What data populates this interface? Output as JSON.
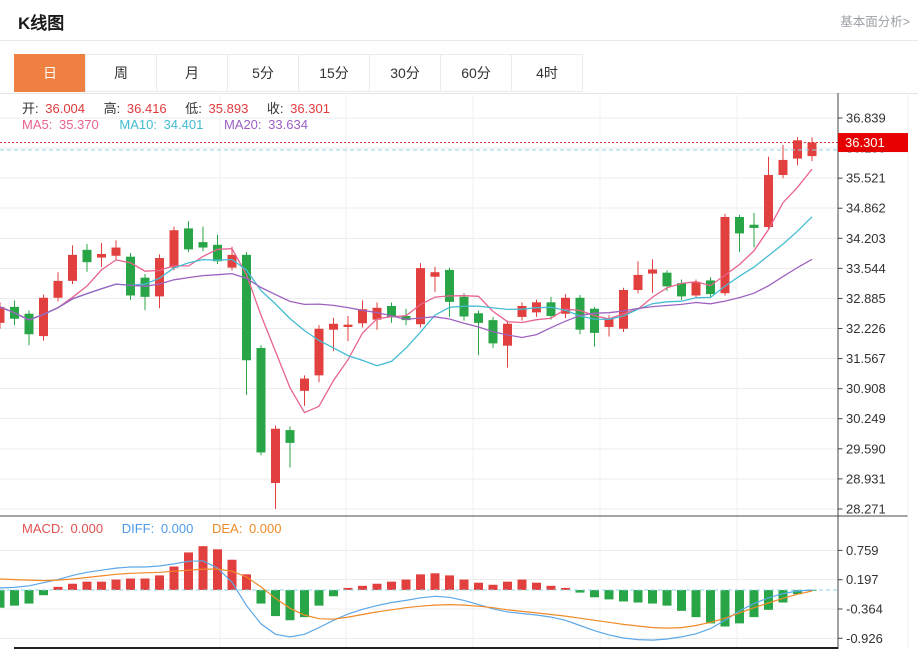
{
  "header": {
    "title": "K线图",
    "link": "基本面分析>"
  },
  "tabs": {
    "items": [
      "日",
      "周",
      "月",
      "5分",
      "15分",
      "30分",
      "60分",
      "4时"
    ],
    "active_index": 0
  },
  "readout": {
    "open_label": "开:",
    "open": "36.004",
    "high_label": "高:",
    "high": "36.416",
    "low_label": "低:",
    "low": "35.893",
    "close_label": "收:",
    "close": "36.301",
    "ma5_label": "MA5:",
    "ma5": "35.370",
    "ma10_label": "MA10:",
    "ma10": "34.401",
    "ma20_label": "MA20:",
    "ma20": "33.634"
  },
  "macd_readout": {
    "macd_label": "MACD:",
    "macd": "0.000",
    "diff_label": "DIFF:",
    "diff": "0.000",
    "dea_label": "DEA:",
    "dea": "0.000"
  },
  "badge": {
    "label": "36.301"
  },
  "colors": {
    "up": "#e2403e",
    "down": "#28a546",
    "ma5": "#e8638f",
    "ma10": "#45bcd2",
    "ma20": "#9e63c0",
    "diff": "#5ca8e8",
    "dea": "#f08a28",
    "badge": "#e60000",
    "current_dashed": "#e03030",
    "reference_dashed": "#8fd4e6",
    "tab_active": "#ee8041",
    "grid": "#ececec",
    "axis": "#444",
    "axis_text": "#333"
  },
  "chart_data": [
    {
      "type": "candlestick",
      "title": "K线图 (daily)",
      "ylim": [
        28.271,
        36.839
      ],
      "y_axis_labels": [
        36.839,
        36.18,
        35.521,
        34.862,
        34.203,
        33.544,
        32.885,
        32.226,
        31.567,
        30.908,
        30.249,
        29.59,
        28.931,
        28.271
      ],
      "current_price": 36.301,
      "reference_price": 36.138,
      "ma_periods": [
        5,
        10,
        20
      ],
      "legend": [
        "MA5",
        "MA10",
        "MA20"
      ],
      "grid": true,
      "ohlc_note": "open, high, low, close per candle; values estimated from pixels except last candle (from readout)",
      "ohlc": [
        [
          32.35,
          32.8,
          32.22,
          32.7
        ],
        [
          32.7,
          32.84,
          32.3,
          32.44
        ],
        [
          32.55,
          32.62,
          31.86,
          32.1
        ],
        [
          32.06,
          32.97,
          31.96,
          32.9
        ],
        [
          32.9,
          33.46,
          32.82,
          33.27
        ],
        [
          33.27,
          34.05,
          33.2,
          33.84
        ],
        [
          33.95,
          34.08,
          33.47,
          33.68
        ],
        [
          33.78,
          34.1,
          33.57,
          33.86
        ],
        [
          33.82,
          34.16,
          33.72,
          34.0
        ],
        [
          33.8,
          33.88,
          32.85,
          32.95
        ],
        [
          33.34,
          33.42,
          32.63,
          32.92
        ],
        [
          32.93,
          33.85,
          32.67,
          33.77
        ],
        [
          33.56,
          34.46,
          33.5,
          34.38
        ],
        [
          34.42,
          34.58,
          33.9,
          33.96
        ],
        [
          34.12,
          34.46,
          33.92,
          34.0
        ],
        [
          34.06,
          34.28,
          33.64,
          33.7
        ],
        [
          33.56,
          34.02,
          33.5,
          33.84
        ],
        [
          33.84,
          33.9,
          30.77,
          31.53
        ],
        [
          31.8,
          31.86,
          29.45,
          29.51
        ],
        [
          28.84,
          30.1,
          28.27,
          30.03
        ],
        [
          30.0,
          30.08,
          29.18,
          29.72
        ],
        [
          30.86,
          31.2,
          30.53,
          31.13
        ],
        [
          31.2,
          32.3,
          31.05,
          32.22
        ],
        [
          32.2,
          32.46,
          31.73,
          32.33
        ],
        [
          32.26,
          32.5,
          31.95,
          32.31
        ],
        [
          32.34,
          32.84,
          32.25,
          32.65
        ],
        [
          32.42,
          32.8,
          32.2,
          32.68
        ],
        [
          32.72,
          32.8,
          32.35,
          32.47
        ],
        [
          32.5,
          32.66,
          32.3,
          32.41
        ],
        [
          32.32,
          33.66,
          32.25,
          33.55
        ],
        [
          33.36,
          33.58,
          33.03,
          33.46
        ],
        [
          33.51,
          33.56,
          32.48,
          32.81
        ],
        [
          32.92,
          33.0,
          32.4,
          32.49
        ],
        [
          32.56,
          32.62,
          31.64,
          32.35
        ],
        [
          32.41,
          32.48,
          31.8,
          31.9
        ],
        [
          31.85,
          32.4,
          31.37,
          32.33
        ],
        [
          32.48,
          32.8,
          32.4,
          32.72
        ],
        [
          32.58,
          32.86,
          32.48,
          32.8
        ],
        [
          32.8,
          32.92,
          32.42,
          32.5
        ],
        [
          32.55,
          32.98,
          32.45,
          32.9
        ],
        [
          32.9,
          32.96,
          32.1,
          32.2
        ],
        [
          32.66,
          32.7,
          31.83,
          32.13
        ],
        [
          32.26,
          32.52,
          32.05,
          32.45
        ],
        [
          32.22,
          33.12,
          32.15,
          33.07
        ],
        [
          33.07,
          33.7,
          33.0,
          33.4
        ],
        [
          33.43,
          33.74,
          33.01,
          33.52
        ],
        [
          33.45,
          33.5,
          33.05,
          33.15
        ],
        [
          33.22,
          33.3,
          32.85,
          32.93
        ],
        [
          32.95,
          33.3,
          32.9,
          33.25
        ],
        [
          33.28,
          33.35,
          32.9,
          32.98
        ],
        [
          33.0,
          34.74,
          32.95,
          34.67
        ],
        [
          34.67,
          34.72,
          33.9,
          34.31
        ],
        [
          34.5,
          34.76,
          34.0,
          34.43
        ],
        [
          34.45,
          35.99,
          34.4,
          35.59
        ],
        [
          35.59,
          36.25,
          35.52,
          35.92
        ],
        [
          35.95,
          36.42,
          35.8,
          36.35
        ],
        [
          36.004,
          36.416,
          35.893,
          36.301
        ]
      ]
    },
    {
      "type": "bar",
      "name": "MACD",
      "ylim": [
        -0.926,
        0.759
      ],
      "y_axis_labels": [
        0.759,
        0.197,
        -0.364,
        -0.926
      ],
      "grid": true,
      "histogram": [
        -0.34,
        -0.3,
        -0.26,
        -0.1,
        0.06,
        0.12,
        0.16,
        0.16,
        0.2,
        0.22,
        0.22,
        0.28,
        0.45,
        0.72,
        0.84,
        0.78,
        0.58,
        0.3,
        -0.26,
        -0.5,
        -0.58,
        -0.52,
        -0.3,
        -0.12,
        0.04,
        0.08,
        0.12,
        0.16,
        0.2,
        0.3,
        0.32,
        0.28,
        0.2,
        0.14,
        0.1,
        0.16,
        0.2,
        0.14,
        0.08,
        0.04,
        -0.05,
        -0.14,
        -0.18,
        -0.22,
        -0.24,
        -0.26,
        -0.3,
        -0.4,
        -0.52,
        -0.64,
        -0.7,
        -0.64,
        -0.52,
        -0.38,
        -0.24,
        -0.08,
        -0.01
      ],
      "diff": [
        0.04,
        0.05,
        0.08,
        0.14,
        0.2,
        0.28,
        0.34,
        0.38,
        0.42,
        0.44,
        0.44,
        0.46,
        0.5,
        0.55,
        0.56,
        0.42,
        0.15,
        -0.3,
        -0.65,
        -0.85,
        -0.9,
        -0.85,
        -0.72,
        -0.58,
        -0.46,
        -0.37,
        -0.3,
        -0.24,
        -0.2,
        -0.15,
        -0.12,
        -0.14,
        -0.2,
        -0.28,
        -0.36,
        -0.42,
        -0.45,
        -0.48,
        -0.52,
        -0.58,
        -0.68,
        -0.78,
        -0.86,
        -0.92,
        -0.95,
        -0.96,
        -0.94,
        -0.9,
        -0.84,
        -0.74,
        -0.58,
        -0.4,
        -0.26,
        -0.15,
        -0.07,
        -0.02,
        0.0
      ],
      "dea": [
        0.21,
        0.2,
        0.19,
        0.18,
        0.19,
        0.21,
        0.24,
        0.27,
        0.3,
        0.32,
        0.33,
        0.34,
        0.36,
        0.38,
        0.4,
        0.4,
        0.36,
        0.25,
        0.06,
        -0.16,
        -0.35,
        -0.48,
        -0.55,
        -0.56,
        -0.52,
        -0.47,
        -0.42,
        -0.38,
        -0.34,
        -0.31,
        -0.29,
        -0.28,
        -0.29,
        -0.31,
        -0.34,
        -0.38,
        -0.41,
        -0.44,
        -0.47,
        -0.5,
        -0.54,
        -0.58,
        -0.62,
        -0.66,
        -0.69,
        -0.72,
        -0.73,
        -0.72,
        -0.68,
        -0.62,
        -0.54,
        -0.44,
        -0.34,
        -0.25,
        -0.16,
        -0.08,
        -0.02
      ]
    }
  ]
}
